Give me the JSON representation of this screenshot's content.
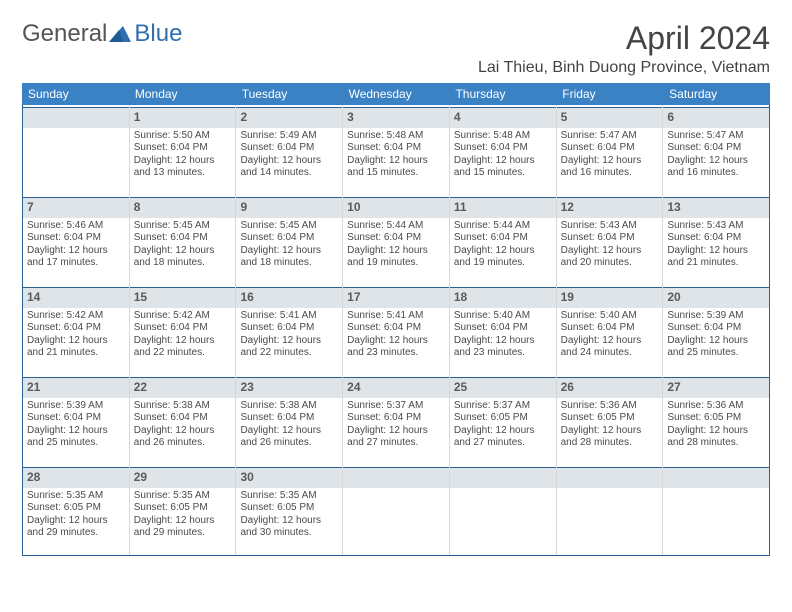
{
  "logo": {
    "part1": "General",
    "part2": "Blue"
  },
  "title": "April 2024",
  "location": "Lai Thieu, Binh Duong Province, Vietnam",
  "colors": {
    "header_bg": "#3b82c4",
    "daynum_bg": "#dfe4e8",
    "border": "#2a5f91",
    "logo_blue": "#2f6fae"
  },
  "weekdays": [
    "Sunday",
    "Monday",
    "Tuesday",
    "Wednesday",
    "Thursday",
    "Friday",
    "Saturday"
  ],
  "weeks": [
    [
      {
        "n": "",
        "sr": "",
        "ss": "",
        "dl": ""
      },
      {
        "n": "1",
        "sr": "Sunrise: 5:50 AM",
        "ss": "Sunset: 6:04 PM",
        "dl": "Daylight: 12 hours and 13 minutes."
      },
      {
        "n": "2",
        "sr": "Sunrise: 5:49 AM",
        "ss": "Sunset: 6:04 PM",
        "dl": "Daylight: 12 hours and 14 minutes."
      },
      {
        "n": "3",
        "sr": "Sunrise: 5:48 AM",
        "ss": "Sunset: 6:04 PM",
        "dl": "Daylight: 12 hours and 15 minutes."
      },
      {
        "n": "4",
        "sr": "Sunrise: 5:48 AM",
        "ss": "Sunset: 6:04 PM",
        "dl": "Daylight: 12 hours and 15 minutes."
      },
      {
        "n": "5",
        "sr": "Sunrise: 5:47 AM",
        "ss": "Sunset: 6:04 PM",
        "dl": "Daylight: 12 hours and 16 minutes."
      },
      {
        "n": "6",
        "sr": "Sunrise: 5:47 AM",
        "ss": "Sunset: 6:04 PM",
        "dl": "Daylight: 12 hours and 16 minutes."
      }
    ],
    [
      {
        "n": "7",
        "sr": "Sunrise: 5:46 AM",
        "ss": "Sunset: 6:04 PM",
        "dl": "Daylight: 12 hours and 17 minutes."
      },
      {
        "n": "8",
        "sr": "Sunrise: 5:45 AM",
        "ss": "Sunset: 6:04 PM",
        "dl": "Daylight: 12 hours and 18 minutes."
      },
      {
        "n": "9",
        "sr": "Sunrise: 5:45 AM",
        "ss": "Sunset: 6:04 PM",
        "dl": "Daylight: 12 hours and 18 minutes."
      },
      {
        "n": "10",
        "sr": "Sunrise: 5:44 AM",
        "ss": "Sunset: 6:04 PM",
        "dl": "Daylight: 12 hours and 19 minutes."
      },
      {
        "n": "11",
        "sr": "Sunrise: 5:44 AM",
        "ss": "Sunset: 6:04 PM",
        "dl": "Daylight: 12 hours and 19 minutes."
      },
      {
        "n": "12",
        "sr": "Sunrise: 5:43 AM",
        "ss": "Sunset: 6:04 PM",
        "dl": "Daylight: 12 hours and 20 minutes."
      },
      {
        "n": "13",
        "sr": "Sunrise: 5:43 AM",
        "ss": "Sunset: 6:04 PM",
        "dl": "Daylight: 12 hours and 21 minutes."
      }
    ],
    [
      {
        "n": "14",
        "sr": "Sunrise: 5:42 AM",
        "ss": "Sunset: 6:04 PM",
        "dl": "Daylight: 12 hours and 21 minutes."
      },
      {
        "n": "15",
        "sr": "Sunrise: 5:42 AM",
        "ss": "Sunset: 6:04 PM",
        "dl": "Daylight: 12 hours and 22 minutes."
      },
      {
        "n": "16",
        "sr": "Sunrise: 5:41 AM",
        "ss": "Sunset: 6:04 PM",
        "dl": "Daylight: 12 hours and 22 minutes."
      },
      {
        "n": "17",
        "sr": "Sunrise: 5:41 AM",
        "ss": "Sunset: 6:04 PM",
        "dl": "Daylight: 12 hours and 23 minutes."
      },
      {
        "n": "18",
        "sr": "Sunrise: 5:40 AM",
        "ss": "Sunset: 6:04 PM",
        "dl": "Daylight: 12 hours and 23 minutes."
      },
      {
        "n": "19",
        "sr": "Sunrise: 5:40 AM",
        "ss": "Sunset: 6:04 PM",
        "dl": "Daylight: 12 hours and 24 minutes."
      },
      {
        "n": "20",
        "sr": "Sunrise: 5:39 AM",
        "ss": "Sunset: 6:04 PM",
        "dl": "Daylight: 12 hours and 25 minutes."
      }
    ],
    [
      {
        "n": "21",
        "sr": "Sunrise: 5:39 AM",
        "ss": "Sunset: 6:04 PM",
        "dl": "Daylight: 12 hours and 25 minutes."
      },
      {
        "n": "22",
        "sr": "Sunrise: 5:38 AM",
        "ss": "Sunset: 6:04 PM",
        "dl": "Daylight: 12 hours and 26 minutes."
      },
      {
        "n": "23",
        "sr": "Sunrise: 5:38 AM",
        "ss": "Sunset: 6:04 PM",
        "dl": "Daylight: 12 hours and 26 minutes."
      },
      {
        "n": "24",
        "sr": "Sunrise: 5:37 AM",
        "ss": "Sunset: 6:04 PM",
        "dl": "Daylight: 12 hours and 27 minutes."
      },
      {
        "n": "25",
        "sr": "Sunrise: 5:37 AM",
        "ss": "Sunset: 6:05 PM",
        "dl": "Daylight: 12 hours and 27 minutes."
      },
      {
        "n": "26",
        "sr": "Sunrise: 5:36 AM",
        "ss": "Sunset: 6:05 PM",
        "dl": "Daylight: 12 hours and 28 minutes."
      },
      {
        "n": "27",
        "sr": "Sunrise: 5:36 AM",
        "ss": "Sunset: 6:05 PM",
        "dl": "Daylight: 12 hours and 28 minutes."
      }
    ],
    [
      {
        "n": "28",
        "sr": "Sunrise: 5:35 AM",
        "ss": "Sunset: 6:05 PM",
        "dl": "Daylight: 12 hours and 29 minutes."
      },
      {
        "n": "29",
        "sr": "Sunrise: 5:35 AM",
        "ss": "Sunset: 6:05 PM",
        "dl": "Daylight: 12 hours and 29 minutes."
      },
      {
        "n": "30",
        "sr": "Sunrise: 5:35 AM",
        "ss": "Sunset: 6:05 PM",
        "dl": "Daylight: 12 hours and 30 minutes."
      },
      {
        "n": "",
        "sr": "",
        "ss": "",
        "dl": ""
      },
      {
        "n": "",
        "sr": "",
        "ss": "",
        "dl": ""
      },
      {
        "n": "",
        "sr": "",
        "ss": "",
        "dl": ""
      },
      {
        "n": "",
        "sr": "",
        "ss": "",
        "dl": ""
      }
    ]
  ]
}
